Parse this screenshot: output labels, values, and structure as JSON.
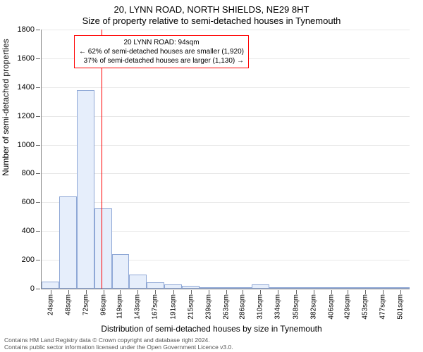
{
  "titles": {
    "line1": "20, LYNN ROAD, NORTH SHIELDS, NE29 8HT",
    "line2": "Size of property relative to semi-detached houses in Tynemouth"
  },
  "ylabel": "Number of semi-detached properties",
  "xlabel": "Distribution of semi-detached houses by size in Tynemouth",
  "footer": {
    "line1": "Contains HM Land Registry data © Crown copyright and database right 2024.",
    "line2": "Contains public sector information licensed under the Open Government Licence v3.0."
  },
  "annotation": {
    "title": "20 LYNN ROAD: 94sqm",
    "line_left": "← 62% of semi-detached houses are smaller (1,920)",
    "line_right": "37% of semi-detached houses are larger (1,130) →",
    "border_color": "#ff0000",
    "background": "#ffffff"
  },
  "marker_line": {
    "x_value": 94,
    "color": "#ff0000"
  },
  "chart": {
    "type": "histogram",
    "x_min": 12,
    "x_max": 513,
    "ylim": [
      0,
      1800
    ],
    "ytick_step": 200,
    "bar_fill": "#e6eefb",
    "bar_border": "#8fa8d6",
    "background_color": "#ffffff",
    "grid_color": "#e8e8e8",
    "xtick_labels": [
      "24sqm",
      "48sqm",
      "72sqm",
      "96sqm",
      "119sqm",
      "143sqm",
      "167sqm",
      "191sqm",
      "215sqm",
      "239sqm",
      "263sqm",
      "286sqm",
      "310sqm",
      "334sqm",
      "358sqm",
      "382sqm",
      "406sqm",
      "429sqm",
      "453sqm",
      "477sqm",
      "501sqm"
    ],
    "xtick_values": [
      24,
      48,
      72,
      96,
      119,
      143,
      167,
      191,
      215,
      239,
      263,
      286,
      310,
      334,
      358,
      382,
      406,
      429,
      453,
      477,
      501
    ],
    "bars": [
      {
        "x0": 12,
        "x1": 36,
        "y": 50
      },
      {
        "x0": 36,
        "x1": 60,
        "y": 640
      },
      {
        "x0": 60,
        "x1": 84,
        "y": 1380
      },
      {
        "x0": 84,
        "x1": 108,
        "y": 560
      },
      {
        "x0": 108,
        "x1": 131,
        "y": 240
      },
      {
        "x0": 131,
        "x1": 155,
        "y": 100
      },
      {
        "x0": 155,
        "x1": 179,
        "y": 45
      },
      {
        "x0": 179,
        "x1": 203,
        "y": 30
      },
      {
        "x0": 203,
        "x1": 227,
        "y": 20
      },
      {
        "x0": 227,
        "x1": 251,
        "y": 12
      },
      {
        "x0": 251,
        "x1": 274,
        "y": 8
      },
      {
        "x0": 274,
        "x1": 298,
        "y": 6
      },
      {
        "x0": 298,
        "x1": 322,
        "y": 28
      },
      {
        "x0": 322,
        "x1": 346,
        "y": 4
      },
      {
        "x0": 346,
        "x1": 370,
        "y": 4
      },
      {
        "x0": 370,
        "x1": 394,
        "y": 4
      },
      {
        "x0": 394,
        "x1": 418,
        "y": 2
      },
      {
        "x0": 418,
        "x1": 441,
        "y": 2
      },
      {
        "x0": 441,
        "x1": 465,
        "y": 2
      },
      {
        "x0": 465,
        "x1": 489,
        "y": 2
      },
      {
        "x0": 489,
        "x1": 513,
        "y": 2
      }
    ]
  }
}
